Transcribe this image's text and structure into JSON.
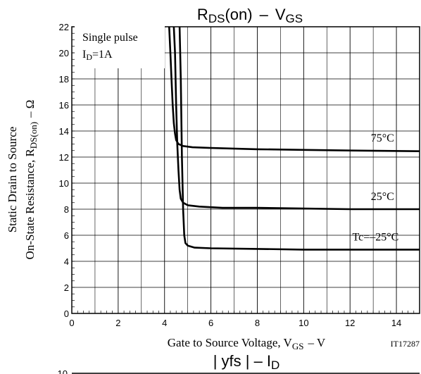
{
  "chart_data": {
    "type": "line",
    "title": "Rₓ",
    "title_main": "R",
    "title_main_sub": "DS",
    "title_main_paren": "(on)",
    "title_main_dash": "–",
    "title_main_v": "V",
    "title_main_v_sub": "GS",
    "xlabel_prefix": "Gate to Source Voltage, V",
    "xlabel_sub": "GS",
    "xlabel_suffix": "–  V",
    "ylabel_line1": "Static Drain to Source",
    "ylabel_line2_prefix": "On-State Resistance, R",
    "ylabel_line2_sub": "DS(on)",
    "ylabel_line2_suffix": "–  Ω",
    "xlim": [
      0,
      15
    ],
    "ylim": [
      0,
      22
    ],
    "xticks": [
      0,
      2,
      4,
      6,
      8,
      10,
      12,
      14
    ],
    "yticks": [
      0,
      2,
      4,
      6,
      8,
      10,
      12,
      14,
      16,
      18,
      20,
      22
    ],
    "grid": true,
    "note_line1": "Single pulse",
    "note_line2_prefix": "I",
    "note_line2_sub": "D",
    "note_line2_suffix": "=1A",
    "code": "IT17287",
    "series": [
      {
        "name": "75°C",
        "x": [
          4.2,
          4.25,
          4.3,
          4.35,
          4.4,
          4.45,
          4.5,
          4.6,
          4.8,
          5.2,
          6,
          8,
          10,
          12,
          15
        ],
        "y": [
          22,
          20,
          18,
          16,
          14.6,
          13.8,
          13.3,
          13.0,
          12.85,
          12.75,
          12.7,
          12.6,
          12.55,
          12.5,
          12.45
        ]
      },
      {
        "name": "25°C",
        "x": [
          4.4,
          4.45,
          4.5,
          4.55,
          4.6,
          4.65,
          4.7,
          4.8,
          5.0,
          5.5,
          6.5,
          8,
          10,
          12,
          15
        ],
        "y": [
          22,
          20,
          16,
          13,
          11,
          9.5,
          8.8,
          8.5,
          8.3,
          8.2,
          8.1,
          8.1,
          8.05,
          8.0,
          8.0
        ]
      },
      {
        "name": "Tc=–25°C",
        "x": [
          4.65,
          4.7,
          4.75,
          4.8,
          4.85,
          4.9,
          5.0,
          5.3,
          6,
          8,
          10,
          12,
          15
        ],
        "y": [
          22,
          18,
          12,
          8,
          6,
          5.4,
          5.2,
          5.05,
          5.0,
          4.95,
          4.9,
          4.9,
          4.9
        ]
      }
    ],
    "second_chart_title_prefix": "| yfs | – I",
    "second_chart_title_sub": "D",
    "second_chart_partial_tick": "10"
  }
}
